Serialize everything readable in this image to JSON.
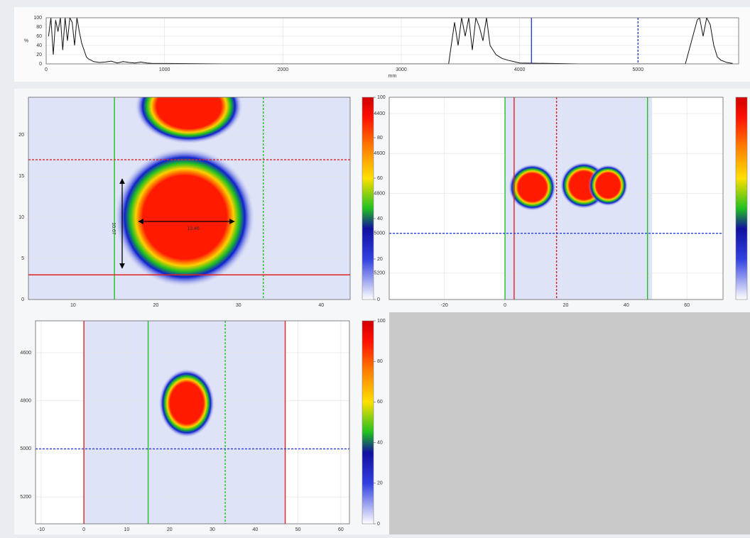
{
  "chart_data": [
    {
      "type": "line",
      "ylabel": "%",
      "xlabel": "mm",
      "xlim": [
        0,
        5850
      ],
      "ylim": [
        0,
        100
      ],
      "xticks": [
        0,
        1000,
        2000,
        3000,
        4000,
        5000
      ],
      "yticks": [
        0,
        20,
        40,
        60,
        80,
        100
      ],
      "grid": true,
      "series": [
        {
          "color": "#111111",
          "x": [
            20,
            40,
            60,
            80,
            100,
            120,
            140,
            160,
            180,
            200,
            220,
            240,
            260,
            280,
            300,
            320,
            340,
            360,
            380,
            400,
            450,
            500,
            550,
            600,
            650,
            700,
            750,
            800,
            850,
            900,
            1000,
            1500,
            2000,
            2500,
            3000,
            3400,
            3450,
            3480,
            3510,
            3540,
            3570,
            3600,
            3630,
            3660,
            3690,
            3720,
            3750,
            3800,
            3850,
            3900,
            3950,
            4000,
            4500,
            5000,
            5400,
            5500,
            5520,
            5550,
            5580,
            5610,
            5640,
            5670,
            5700,
            5750,
            5800
          ],
          "values": [
            60,
            100,
            20,
            95,
            70,
            100,
            30,
            100,
            50,
            100,
            90,
            40,
            100,
            70,
            45,
            30,
            15,
            10,
            8,
            5,
            3,
            4,
            6,
            2,
            5,
            3,
            2,
            4,
            2,
            1,
            1,
            0,
            0,
            0,
            0,
            0,
            90,
            40,
            100,
            60,
            100,
            30,
            100,
            80,
            50,
            100,
            40,
            20,
            12,
            8,
            5,
            2,
            0,
            0,
            0,
            95,
            100,
            60,
            100,
            85,
            40,
            15,
            8,
            3,
            1
          ]
        }
      ],
      "cursors": [
        {
          "axis": "x",
          "value": 4100,
          "color": "#2a3fd6",
          "dashed": false
        },
        {
          "axis": "x",
          "value": 5000,
          "color": "#2a3fd6",
          "dashed": true
        }
      ]
    },
    {
      "type": "heatmap",
      "xlim": [
        4.6,
        43.5
      ],
      "ylim": [
        0,
        24.6
      ],
      "xticks": [
        10,
        20,
        30,
        40
      ],
      "yticks": [
        0,
        5,
        10,
        15,
        20
      ],
      "cursors": [
        {
          "axis": "x",
          "value": 15,
          "color": "#22c022",
          "dashed": false
        },
        {
          "axis": "x",
          "value": 33,
          "color": "#22c022",
          "dashed": true
        },
        {
          "axis": "y",
          "value": 17,
          "color": "#e02020",
          "dashed": true
        },
        {
          "axis": "y",
          "value": 3,
          "color": "#e02020",
          "dashed": false
        }
      ],
      "blobs": [
        {
          "x": 24,
          "y": 23.5,
          "rx": 5,
          "ry": 3.5
        },
        {
          "x": 23.5,
          "y": 10,
          "rx": 6.5,
          "ry": 6.5
        }
      ],
      "annotations": [
        "10.67",
        "13.46"
      ],
      "colorbar": {
        "lim": [
          0,
          100
        ],
        "ticks": [
          0,
          20,
          40,
          60,
          80,
          100
        ]
      }
    },
    {
      "type": "heatmap",
      "xlim": [
        -38.2,
        71.9
      ],
      "ylim": [
        5332,
        4318
      ],
      "xticks": [
        -20,
        0,
        20,
        40,
        60
      ],
      "yticks": [
        4400,
        4600,
        4800,
        5000,
        5200
      ],
      "cursors": [
        {
          "axis": "x",
          "value": 0,
          "color": "#22c022",
          "dashed": false
        },
        {
          "axis": "x",
          "value": 47,
          "color": "#22c022",
          "dashed": false
        },
        {
          "axis": "x",
          "value": 3,
          "color": "#e02020",
          "dashed": false
        },
        {
          "axis": "x",
          "value": 17,
          "color": "#e02020",
          "dashed": true
        },
        {
          "axis": "y",
          "value": 5000,
          "color": "#2a3fd6",
          "dashed": true
        }
      ],
      "blobs": [
        {
          "x": 9,
          "y": 4770,
          "rx": 6,
          "ry": 90
        },
        {
          "x": 26,
          "y": 4760,
          "rx": 6,
          "ry": 90
        },
        {
          "x": 34,
          "y": 4760,
          "rx": 5,
          "ry": 80
        }
      ],
      "colorbar": {
        "lim": [
          0,
          100
        ],
        "ticks": []
      }
    },
    {
      "type": "heatmap",
      "xlim": [
        -11.3,
        62
      ],
      "ylim": [
        5312,
        4467
      ],
      "xticks": [
        -10,
        0,
        10,
        20,
        30,
        40,
        50,
        60
      ],
      "yticks": [
        4600,
        4800,
        5000,
        5200
      ],
      "cursors": [
        {
          "axis": "x",
          "value": 0,
          "color": "#e02020",
          "dashed": false
        },
        {
          "axis": "x",
          "value": 47,
          "color": "#e02020",
          "dashed": false
        },
        {
          "axis": "x",
          "value": 15,
          "color": "#22c022",
          "dashed": false
        },
        {
          "axis": "x",
          "value": 33,
          "color": "#22c022",
          "dashed": true
        },
        {
          "axis": "y",
          "value": 5000,
          "color": "#2a3fd6",
          "dashed": true
        }
      ],
      "blobs": [
        {
          "x": 24,
          "y": 4810,
          "rx": 5,
          "ry": 110
        }
      ],
      "colorbar": {
        "lim": [
          0,
          100
        ],
        "ticks": [
          0,
          20,
          40,
          60,
          80,
          100
        ]
      }
    }
  ]
}
